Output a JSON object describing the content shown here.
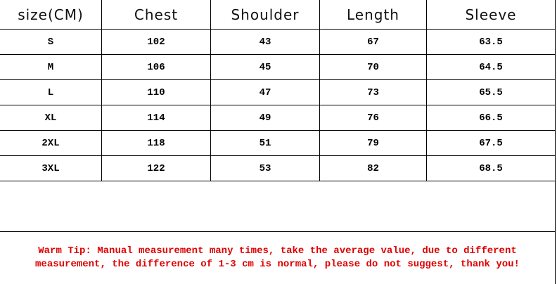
{
  "headers": [
    "size(CM)",
    "Chest",
    "Shoulder",
    "Length",
    "Sleeve"
  ],
  "rows": [
    [
      "S",
      "102",
      "43",
      "67",
      "63.5"
    ],
    [
      "M",
      "106",
      "45",
      "70",
      "64.5"
    ],
    [
      "L",
      "110",
      "47",
      "73",
      "65.5"
    ],
    [
      "XL",
      "114",
      "49",
      "76",
      "66.5"
    ],
    [
      "2XL",
      "118",
      "51",
      "79",
      "67.5"
    ],
    [
      "3XL",
      "122",
      "53",
      "82",
      "68.5"
    ]
  ],
  "tip": "Warm Tip: Manual measurement many times, take the average value, due to different measurement, the difference of 1-3 cm is normal, please do not suggest, thank you!",
  "colors": {
    "tip": "#e00000",
    "grid": "#000000"
  }
}
